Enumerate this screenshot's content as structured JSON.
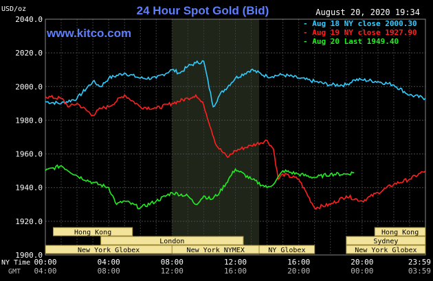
{
  "chart_data": {
    "type": "line",
    "title": "24 Hour Spot Gold (Bid)",
    "date_label": "August 20, 2020 19:34",
    "watermark": "www.kitco.com",
    "y_unit": "USD/oz",
    "ylim": [
      1900,
      2040
    ],
    "y_ticks": [
      "2040.0",
      "2020.0",
      "2000.0",
      "1980.0",
      "1960.0",
      "1940.0",
      "1920.0",
      "1900.0"
    ],
    "x_row_ny_label": "NY Time",
    "x_row_gmt_label": "GMT",
    "x_ticks_ny": [
      "00:00",
      "04:00",
      "08:00",
      "12:00",
      "16:00",
      "20:00",
      "23:59"
    ],
    "x_ticks_gmt": [
      "04:00",
      "08:00",
      "12:00",
      "16:00",
      "20:00",
      "00:00",
      "03:59"
    ],
    "xlim_hours": [
      0,
      24
    ],
    "grid": true,
    "legend_position": "top-right",
    "highlight_hours": [
      8,
      13.5
    ],
    "series": [
      {
        "name": "Aug 18 NY close 2000.30",
        "color": "#33ccff",
        "x": [
          0,
          1,
          2,
          3,
          3.5,
          4,
          5,
          6,
          7,
          8,
          8.5,
          9,
          9.5,
          10,
          10.6,
          11,
          12,
          13,
          14,
          15,
          16,
          17,
          18,
          19,
          19.5,
          20,
          21,
          22,
          23,
          24
        ],
        "y": [
          1991,
          1990,
          1993,
          2003,
          2000,
          2005,
          2008,
          2005,
          2005,
          2010,
          2008,
          2012,
          2014,
          2015,
          1988,
          1995,
          2005,
          2010,
          2006,
          2007,
          2005,
          2003,
          2001,
          2001,
          2004,
          2004,
          2003,
          2001,
          1995,
          1993
        ]
      },
      {
        "name": "Aug 19 NY close 1927.90",
        "color": "#ff2020",
        "x": [
          0,
          1,
          1.5,
          2,
          3,
          3.5,
          4,
          5,
          6,
          7,
          8,
          9,
          9.5,
          10,
          10.8,
          11.5,
          12,
          13,
          14,
          14.4,
          14.7,
          15,
          16,
          17,
          18,
          19,
          20,
          21,
          22,
          23,
          24
        ],
        "y": [
          1994,
          1993,
          1988,
          1990,
          1983,
          1987,
          1988,
          1995,
          1988,
          1987,
          1990,
          1993,
          1995,
          1989,
          1965,
          1958,
          1962,
          1965,
          1968,
          1963,
          1945,
          1948,
          1945,
          1928,
          1930,
          1935,
          1932,
          1937,
          1942,
          1945,
          1950
        ]
      },
      {
        "name": "Aug 20 Last 1949.40",
        "color": "#22ee22",
        "x": [
          0,
          1,
          2,
          3,
          4,
          4.5,
          5,
          6,
          7,
          8,
          9,
          9.5,
          10,
          10.5,
          11,
          12,
          13,
          14,
          14.5,
          15,
          16,
          17,
          18,
          19,
          19.5
        ],
        "y": [
          1950,
          1953,
          1947,
          1943,
          1940,
          1930,
          1932,
          1928,
          1932,
          1937,
          1935,
          1930,
          1935,
          1933,
          1937,
          1951,
          1945,
          1940,
          1943,
          1950,
          1948,
          1946,
          1948,
          1948,
          1949
        ]
      }
    ],
    "markets": [
      {
        "label": "Hong Kong",
        "start": 0.5,
        "end": 5.5,
        "row": 0
      },
      {
        "label": "Hong Kong",
        "start": 20.8,
        "end": 24,
        "row": 0
      },
      {
        "label": "London",
        "start": 3.5,
        "end": 12.5,
        "row": 1
      },
      {
        "label": "Sydney",
        "start": 19,
        "end": 24,
        "row": 1
      },
      {
        "label": "New York Globex",
        "start": 0,
        "end": 8,
        "row": 2
      },
      {
        "label": "New York NYMEX",
        "start": 8,
        "end": 13.5,
        "row": 2
      },
      {
        "label": "New York Globex",
        "start": 19,
        "end": 24,
        "row": 2
      },
      {
        "label": "NY Globex",
        "start": 13.5,
        "end": 17,
        "row": 2
      }
    ]
  }
}
